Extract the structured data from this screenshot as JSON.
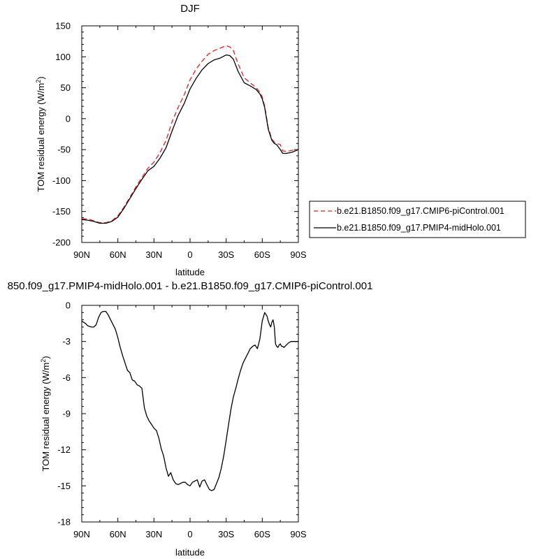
{
  "chart_data": [
    {
      "type": "line",
      "title": "DJF",
      "xlabel": "latitude",
      "ylabel": "TOM residual energy (W/m²)",
      "xlim": [
        90,
        -90
      ],
      "ylim": [
        -200,
        150
      ],
      "xticks": [
        90,
        60,
        30,
        0,
        -30,
        -60,
        -90
      ],
      "xtick_labels": [
        "90N",
        "60N",
        "30N",
        "0",
        "30S",
        "60S",
        "90S"
      ],
      "yticks": [
        150,
        100,
        50,
        0,
        -50,
        -100,
        -150,
        -200
      ],
      "ytick_labels": [
        "150",
        "100",
        "50",
        "0",
        "-50",
        "-100",
        "-150",
        "-200"
      ],
      "legend_position": "right",
      "series": [
        {
          "name": "b.e21.B1850.f09_g17.CMIP6-piControl.001",
          "color": "#e8201f",
          "dash": "dashed",
          "x": [
            90,
            85,
            80,
            75,
            70,
            65,
            60,
            55,
            50,
            45,
            40,
            35,
            30,
            25,
            20,
            15,
            10,
            5,
            0,
            -5,
            -10,
            -15,
            -20,
            -25,
            -30,
            -33,
            -36,
            -40,
            -45,
            -50,
            -55,
            -58,
            -60,
            -62,
            -65,
            -68,
            -70,
            -72,
            -75,
            -77,
            -80,
            -85,
            -90
          ],
          "y": [
            -162,
            -162,
            -165,
            -168,
            -168,
            -165,
            -157,
            -143,
            -127,
            -110,
            -95,
            -80,
            -70,
            -55,
            -35,
            -5,
            18,
            38,
            63,
            80,
            93,
            104,
            110,
            114,
            118,
            116,
            110,
            88,
            66,
            58,
            50,
            43,
            35,
            20,
            -15,
            -33,
            -38,
            -40,
            -42,
            -52,
            -53,
            -51,
            -50
          ]
        },
        {
          "name": "b.e21.B1850.f09_g17.PMIP4-midHolo.001",
          "color": "#000000",
          "dash": "solid",
          "x": [
            90,
            85,
            80,
            75,
            70,
            65,
            60,
            55,
            50,
            45,
            40,
            35,
            30,
            25,
            20,
            15,
            10,
            5,
            0,
            -5,
            -10,
            -15,
            -20,
            -25,
            -30,
            -33,
            -36,
            -40,
            -45,
            -50,
            -55,
            -58,
            -60,
            -62,
            -65,
            -68,
            -70,
            -72,
            -75,
            -77,
            -80,
            -85,
            -90
          ],
          "y": [
            -163,
            -164,
            -166,
            -169,
            -169,
            -166,
            -159,
            -145,
            -129,
            -113,
            -98,
            -84,
            -77,
            -64,
            -47,
            -20,
            5,
            24,
            48,
            65,
            79,
            89,
            95,
            98,
            103,
            102,
            96,
            76,
            58,
            53,
            47,
            40,
            32,
            18,
            -17,
            -35,
            -40,
            -42,
            -50,
            -56,
            -56,
            -54,
            -50
          ]
        }
      ]
    },
    {
      "type": "line",
      "title": "850.f09_g17.PMIP4-midHolo.001 - b.e21.B1850.f09_g17.CMIP6-piControl.001",
      "xlabel": "latitude",
      "ylabel": "TOM residual energy (W/m²)",
      "xlim": [
        90,
        -90
      ],
      "ylim": [
        -18,
        0
      ],
      "xticks": [
        90,
        60,
        30,
        0,
        -30,
        -60,
        -90
      ],
      "xtick_labels": [
        "90N",
        "60N",
        "30N",
        "0",
        "30S",
        "60S",
        "90S"
      ],
      "yticks": [
        0,
        -3,
        -6,
        -9,
        -12,
        -15,
        -18
      ],
      "ytick_labels": [
        "0",
        "-3",
        "-6",
        "-9",
        "-12",
        "-15",
        "-18"
      ],
      "series": [
        {
          "color": "#000000",
          "dash": "solid",
          "x": [
            90,
            87,
            85,
            82,
            80,
            78,
            76,
            74,
            72,
            70,
            68,
            66,
            64,
            62,
            60,
            58,
            56,
            54,
            52,
            50,
            48,
            46,
            44,
            42,
            40,
            38,
            36,
            34,
            32,
            30,
            28,
            26,
            24,
            22,
            20,
            18,
            16,
            14,
            12,
            10,
            8,
            6,
            4,
            2,
            0,
            -2,
            -4,
            -6,
            -8,
            -10,
            -12,
            -14,
            -16,
            -18,
            -20,
            -22,
            -24,
            -26,
            -28,
            -30,
            -32,
            -34,
            -36,
            -38,
            -40,
            -42,
            -44,
            -46,
            -48,
            -50,
            -52,
            -54,
            -56,
            -58,
            -60,
            -62,
            -64,
            -65,
            -66,
            -67,
            -68,
            -69,
            -70,
            -71,
            -72,
            -73,
            -74,
            -75,
            -76,
            -77,
            -78,
            -80,
            -82,
            -84,
            -86,
            -88,
            -90
          ],
          "y": [
            -1.3,
            -1.5,
            -1.7,
            -1.8,
            -1.8,
            -1.6,
            -1.0,
            -0.6,
            -0.5,
            -0.5,
            -0.8,
            -1.2,
            -1.6,
            -2.0,
            -2.7,
            -3.5,
            -4.2,
            -4.8,
            -5.4,
            -5.6,
            -6.2,
            -6.3,
            -6.6,
            -6.7,
            -6.9,
            -8.5,
            -9.2,
            -9.6,
            -9.9,
            -10.2,
            -10.4,
            -11.0,
            -11.9,
            -12.5,
            -13.5,
            -14.2,
            -13.9,
            -14.5,
            -14.8,
            -14.9,
            -14.8,
            -14.7,
            -14.7,
            -14.9,
            -15.0,
            -14.7,
            -14.6,
            -14.5,
            -15.1,
            -14.6,
            -14.5,
            -14.9,
            -15.3,
            -15.4,
            -15.3,
            -14.8,
            -14.3,
            -13.5,
            -12.5,
            -11.2,
            -9.9,
            -8.6,
            -7.6,
            -6.9,
            -6.1,
            -5.4,
            -4.8,
            -4.4,
            -4.0,
            -3.6,
            -3.4,
            -3.3,
            -3.6,
            -2.8,
            -1.3,
            -0.6,
            -0.9,
            -1.3,
            -1.6,
            -1.8,
            -1.4,
            -1.2,
            -1.8,
            -3.2,
            -3.4,
            -3.5,
            -3.3,
            -3.2,
            -3.4,
            -3.4,
            -3.5,
            -3.3,
            -3.1,
            -3.0,
            -3.0,
            -3.0,
            -3.0
          ]
        }
      ]
    }
  ]
}
